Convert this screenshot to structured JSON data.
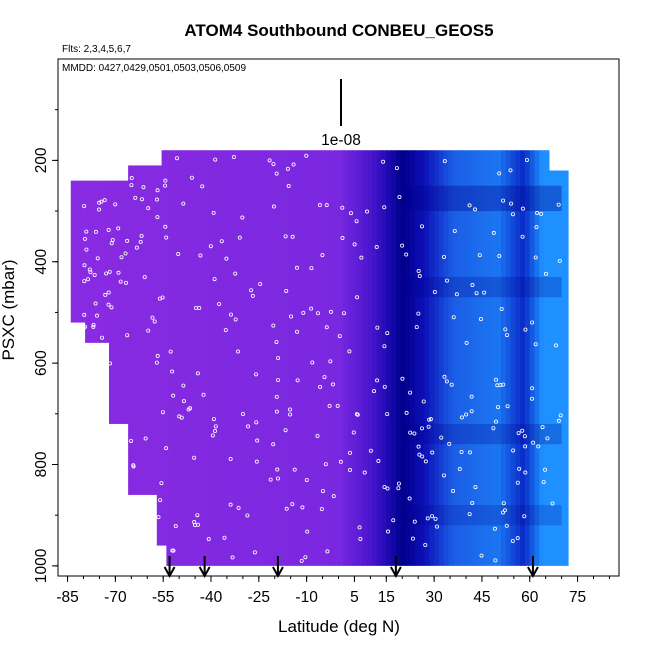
{
  "chart_data": {
    "type": "heatmap",
    "title": "ATOM4 Southbound CONBEU_GEOS5",
    "subtitle_flights": "Flts: 2,3,4,5,6,7",
    "dates_note": "MMDD: 0427,0429,0501,0503,0506,0509",
    "xlabel": "Latitude (deg N)",
    "ylabel": "PSXC (mbar)",
    "xlim": [
      -88,
      88
    ],
    "ylim": [
      1020,
      0
    ],
    "x_tick_labels": [
      "-85",
      "-70",
      "-55",
      "-40",
      "-25",
      "-10",
      "5",
      "15",
      "30",
      "45",
      "60",
      "75"
    ],
    "y_tick_labels": [
      "200",
      "400",
      "600",
      "800",
      "1000"
    ],
    "legend_scale_label": "1e-08",
    "colors": {
      "low": "#8a2be2",
      "mid": "#5a1fd6",
      "high_dark": "#00008b",
      "high_bright": "#1e90ff",
      "markers": "#ffffff",
      "arrows": "#000000"
    },
    "arrows_latitude": [
      -53,
      -42,
      -19,
      18,
      61
    ],
    "field_bands": [
      {
        "lat_from": -88,
        "lat_to": 0,
        "level": "low"
      },
      {
        "lat_from": 0,
        "lat_to": 15,
        "level": "transition"
      },
      {
        "lat_from": 15,
        "lat_to": 25,
        "level": "high_dark"
      },
      {
        "lat_from": 25,
        "lat_to": 72,
        "level": "high_bright"
      }
    ],
    "grid": false,
    "legend": "top-center"
  }
}
